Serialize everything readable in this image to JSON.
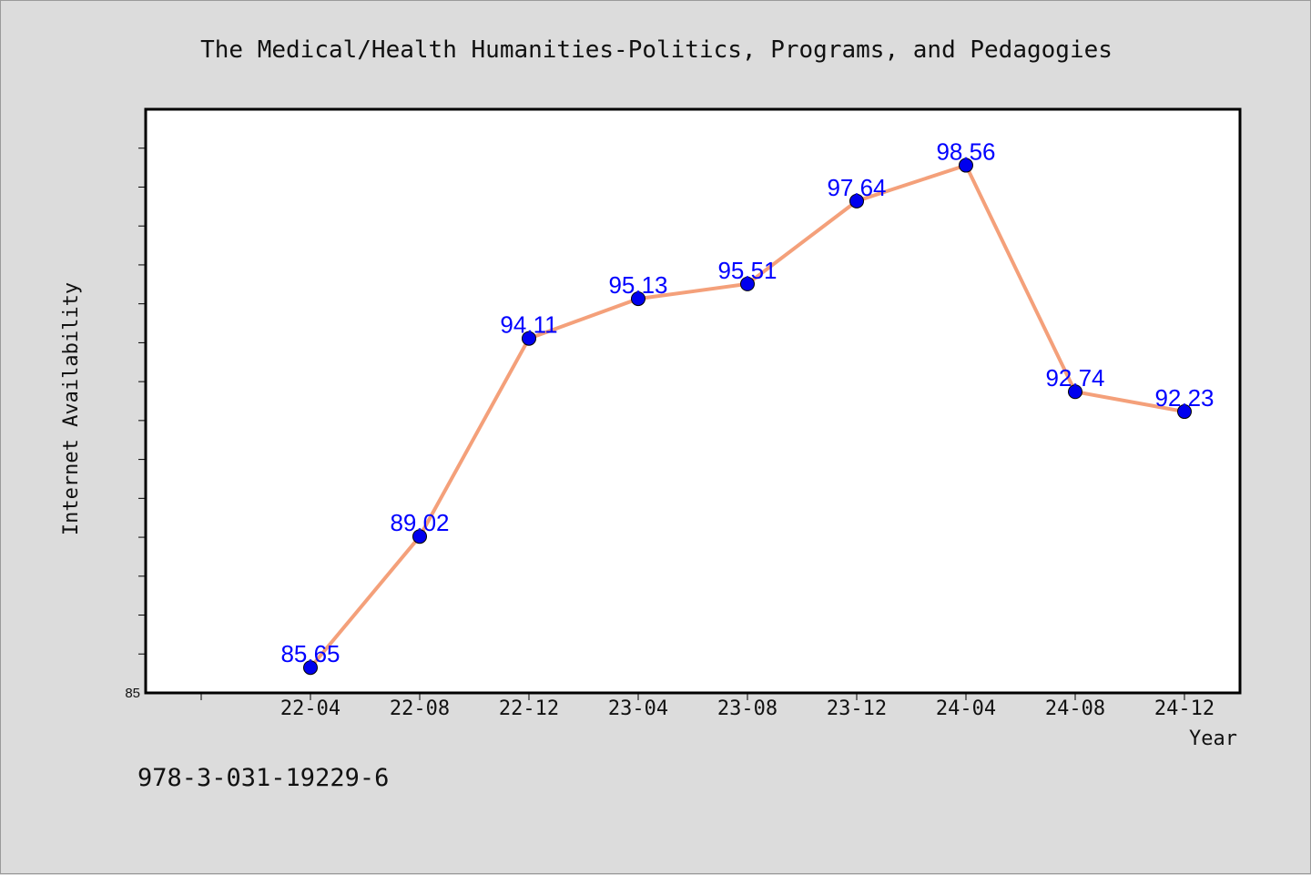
{
  "chart_data": {
    "type": "line",
    "title": "The Medical/Health Humanities-Politics, Programs, and Pedagogies",
    "xlabel": "Year",
    "ylabel": "Internet Availability",
    "categories": [
      "22-04",
      "22-08",
      "22-12",
      "23-04",
      "23-08",
      "23-12",
      "24-04",
      "24-08",
      "24-12"
    ],
    "series": [
      {
        "values": [
          85.65,
          89.02,
          94.11,
          95.13,
          95.51,
          97.64,
          98.56,
          92.74,
          92.23
        ],
        "labels": [
          "85.65",
          "89.02",
          "94.11",
          "95.13",
          "95.51",
          "97.64",
          "98.56",
          "92.74",
          "92.23"
        ],
        "line_color": "#f4a07a",
        "marker_color": "#0000ee"
      }
    ],
    "ylim": [
      85,
      100
    ],
    "ytick_labels": [
      "85"
    ],
    "grid": false,
    "legend": "none"
  },
  "footer": {
    "isbn": "978-3-031-19229-6"
  }
}
